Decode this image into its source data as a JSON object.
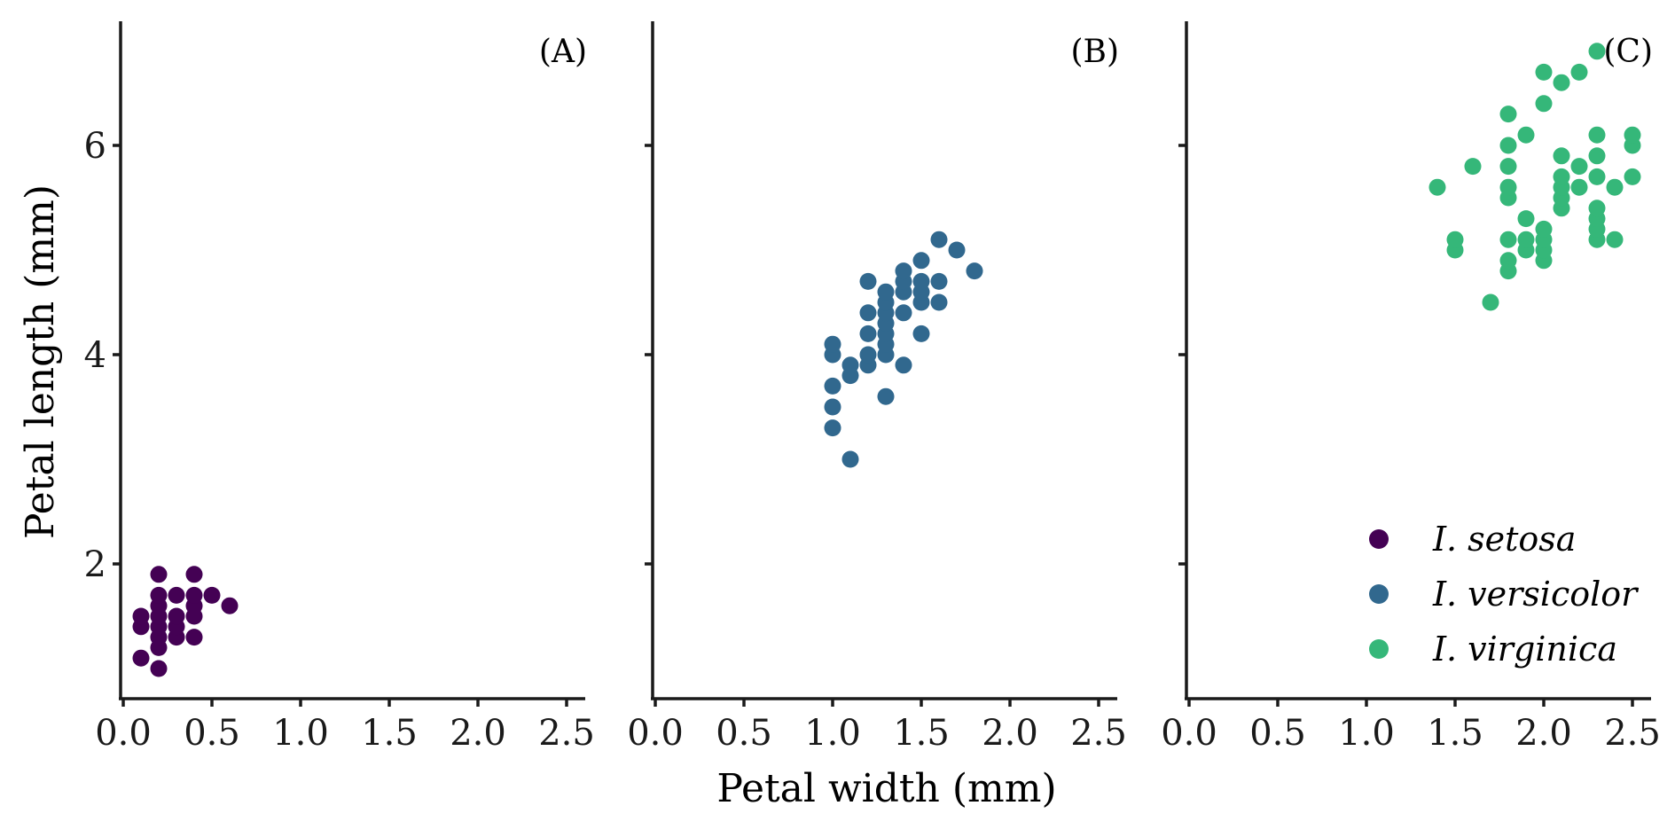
{
  "chart_data": {
    "type": "scatter",
    "xlabel": "Petal width (mm)",
    "ylabel": "Petal length (mm)",
    "xlim": [
      0,
      2.6
    ],
    "ylim": [
      0.75,
      7.2
    ],
    "xticks": [
      "0.0",
      "0.5",
      "1.0",
      "1.5",
      "2.0",
      "2.5"
    ],
    "yticks": [
      "2",
      "4",
      "6"
    ],
    "grid": false,
    "legend_position": "bottom-right of panel C",
    "panels": [
      {
        "tag": "(A)",
        "series": "I. setosa",
        "color": "#440154",
        "points": [
          [
            0.1,
            1.1
          ],
          [
            0.1,
            1.4
          ],
          [
            0.1,
            1.5
          ],
          [
            0.2,
            1.0
          ],
          [
            0.2,
            1.2
          ],
          [
            0.2,
            1.3
          ],
          [
            0.2,
            1.4
          ],
          [
            0.2,
            1.5
          ],
          [
            0.2,
            1.6
          ],
          [
            0.2,
            1.7
          ],
          [
            0.2,
            1.9
          ],
          [
            0.3,
            1.3
          ],
          [
            0.3,
            1.4
          ],
          [
            0.3,
            1.5
          ],
          [
            0.3,
            1.7
          ],
          [
            0.4,
            1.3
          ],
          [
            0.4,
            1.5
          ],
          [
            0.4,
            1.6
          ],
          [
            0.4,
            1.7
          ],
          [
            0.4,
            1.9
          ],
          [
            0.5,
            1.7
          ],
          [
            0.6,
            1.6
          ]
        ]
      },
      {
        "tag": "(B)",
        "series": "I. versicolor",
        "color": "#31688e",
        "points": [
          [
            1.0,
            3.3
          ],
          [
            1.0,
            3.5
          ],
          [
            1.0,
            3.7
          ],
          [
            1.0,
            4.0
          ],
          [
            1.0,
            4.1
          ],
          [
            1.1,
            3.0
          ],
          [
            1.1,
            3.8
          ],
          [
            1.1,
            3.9
          ],
          [
            1.2,
            3.9
          ],
          [
            1.2,
            4.0
          ],
          [
            1.2,
            4.2
          ],
          [
            1.2,
            4.4
          ],
          [
            1.2,
            4.7
          ],
          [
            1.3,
            3.6
          ],
          [
            1.3,
            4.0
          ],
          [
            1.3,
            4.1
          ],
          [
            1.3,
            4.2
          ],
          [
            1.3,
            4.3
          ],
          [
            1.3,
            4.4
          ],
          [
            1.3,
            4.5
          ],
          [
            1.3,
            4.6
          ],
          [
            1.4,
            3.9
          ],
          [
            1.4,
            4.4
          ],
          [
            1.4,
            4.6
          ],
          [
            1.4,
            4.7
          ],
          [
            1.4,
            4.8
          ],
          [
            1.5,
            4.2
          ],
          [
            1.5,
            4.5
          ],
          [
            1.5,
            4.6
          ],
          [
            1.5,
            4.7
          ],
          [
            1.5,
            4.9
          ],
          [
            1.6,
            4.5
          ],
          [
            1.6,
            4.7
          ],
          [
            1.6,
            5.1
          ],
          [
            1.7,
            5.0
          ],
          [
            1.8,
            4.8
          ]
        ]
      },
      {
        "tag": "(C)",
        "series": "I. virginica",
        "color": "#35b779",
        "points": [
          [
            1.4,
            5.6
          ],
          [
            1.5,
            5.0
          ],
          [
            1.5,
            5.1
          ],
          [
            1.6,
            5.8
          ],
          [
            1.7,
            4.5
          ],
          [
            1.8,
            4.8
          ],
          [
            1.8,
            4.9
          ],
          [
            1.8,
            5.1
          ],
          [
            1.8,
            5.5
          ],
          [
            1.8,
            5.6
          ],
          [
            1.8,
            5.8
          ],
          [
            1.8,
            6.0
          ],
          [
            1.8,
            6.3
          ],
          [
            1.9,
            5.0
          ],
          [
            1.9,
            5.1
          ],
          [
            1.9,
            5.3
          ],
          [
            1.9,
            6.1
          ],
          [
            2.0,
            4.9
          ],
          [
            2.0,
            5.0
          ],
          [
            2.0,
            5.1
          ],
          [
            2.0,
            5.2
          ],
          [
            2.0,
            6.4
          ],
          [
            2.0,
            6.7
          ],
          [
            2.1,
            5.4
          ],
          [
            2.1,
            5.5
          ],
          [
            2.1,
            5.6
          ],
          [
            2.1,
            5.7
          ],
          [
            2.1,
            5.9
          ],
          [
            2.1,
            6.6
          ],
          [
            2.2,
            5.6
          ],
          [
            2.2,
            5.8
          ],
          [
            2.2,
            6.7
          ],
          [
            2.3,
            5.1
          ],
          [
            2.3,
            5.2
          ],
          [
            2.3,
            5.3
          ],
          [
            2.3,
            5.4
          ],
          [
            2.3,
            5.7
          ],
          [
            2.3,
            5.9
          ],
          [
            2.3,
            6.1
          ],
          [
            2.3,
            6.9
          ],
          [
            2.4,
            5.1
          ],
          [
            2.4,
            5.6
          ],
          [
            2.5,
            5.7
          ],
          [
            2.5,
            6.0
          ],
          [
            2.5,
            6.1
          ]
        ]
      }
    ],
    "legend": [
      {
        "label": "I. setosa",
        "color": "#440154"
      },
      {
        "label": "I. versicolor",
        "color": "#31688e"
      },
      {
        "label": "I. virginica",
        "color": "#35b779"
      }
    ]
  }
}
